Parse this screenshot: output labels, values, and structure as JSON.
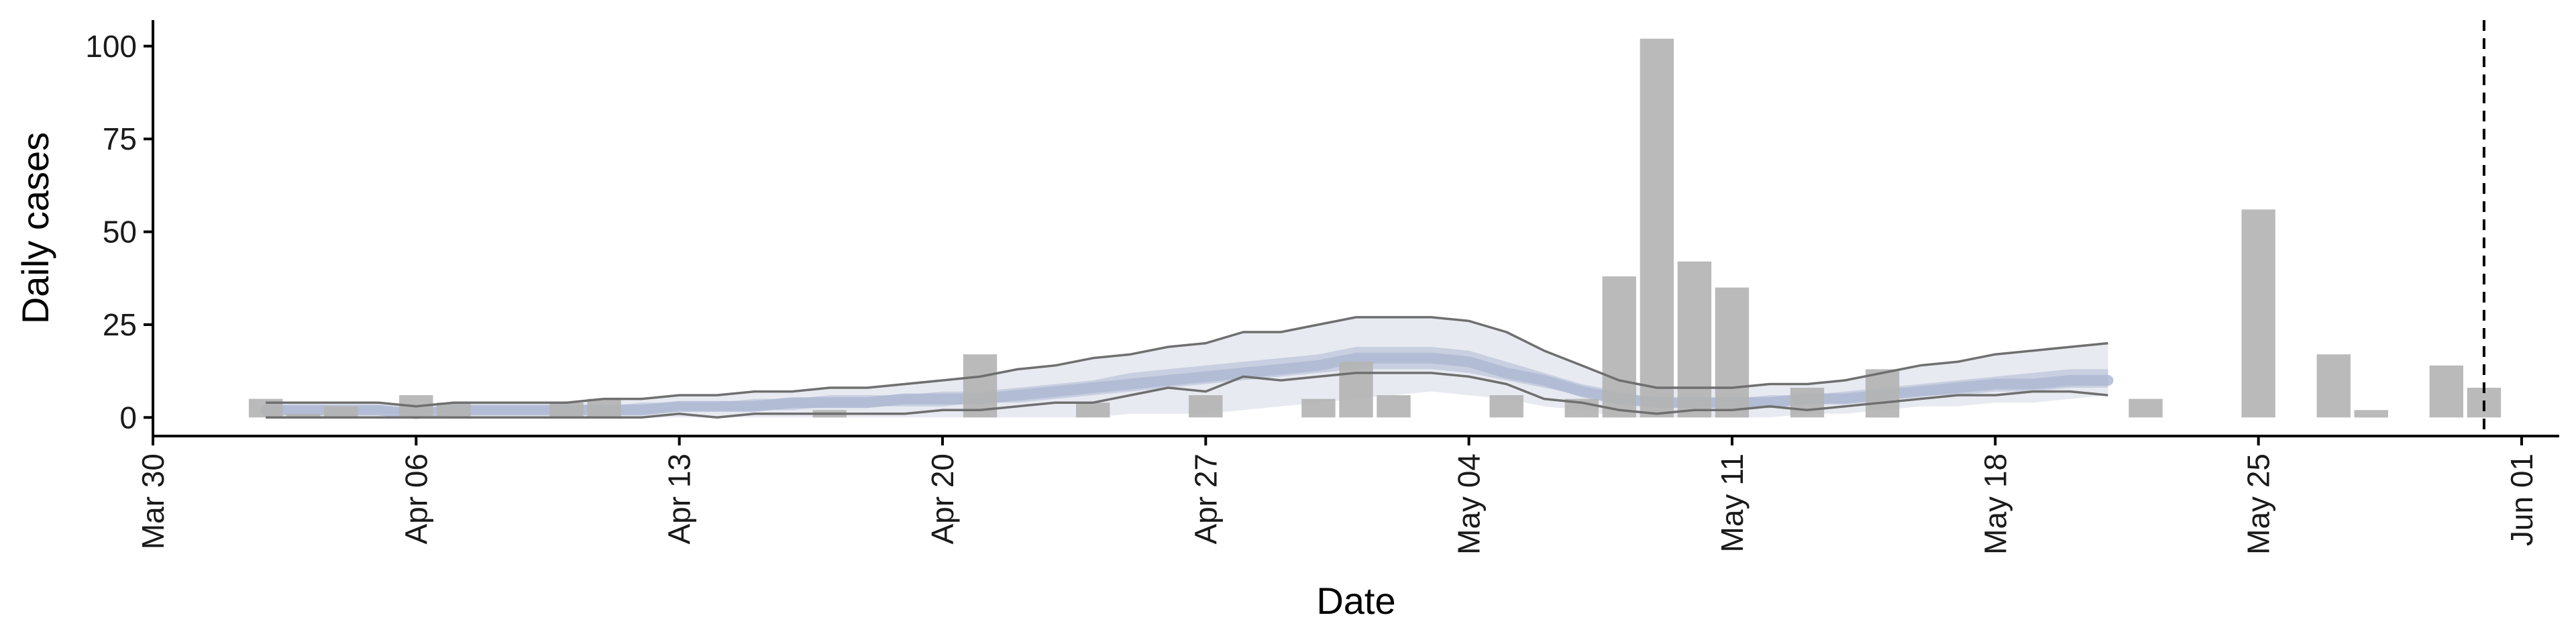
{
  "chart_data": {
    "type": "bar",
    "xlabel": "Date",
    "ylabel": "Daily cases",
    "xlim": [
      "2020-03-30",
      "2020-06-02"
    ],
    "ylim": [
      -5,
      107
    ],
    "x_ticks": [
      {
        "date": "2020-03-30",
        "label": "Mar 30"
      },
      {
        "date": "2020-04-06",
        "label": "Apr 06"
      },
      {
        "date": "2020-04-13",
        "label": "Apr 13"
      },
      {
        "date": "2020-04-20",
        "label": "Apr 20"
      },
      {
        "date": "2020-04-27",
        "label": "Apr 27"
      },
      {
        "date": "2020-05-04",
        "label": "May 04"
      },
      {
        "date": "2020-05-11",
        "label": "May 11"
      },
      {
        "date": "2020-05-18",
        "label": "May 18"
      },
      {
        "date": "2020-05-25",
        "label": "May 25"
      },
      {
        "date": "2020-06-01",
        "label": "Jun 01"
      }
    ],
    "y_ticks": [
      0,
      25,
      50,
      75,
      100
    ],
    "grid": false,
    "bars": [
      {
        "date": "2020-04-02",
        "value": 5
      },
      {
        "date": "2020-04-03",
        "value": 1
      },
      {
        "date": "2020-04-04",
        "value": 3
      },
      {
        "date": "2020-04-06",
        "value": 6
      },
      {
        "date": "2020-04-07",
        "value": 4
      },
      {
        "date": "2020-04-10",
        "value": 4
      },
      {
        "date": "2020-04-11",
        "value": 5
      },
      {
        "date": "2020-04-17",
        "value": 2
      },
      {
        "date": "2020-04-21",
        "value": 17
      },
      {
        "date": "2020-04-24",
        "value": 4
      },
      {
        "date": "2020-04-27",
        "value": 6
      },
      {
        "date": "2020-04-30",
        "value": 5
      },
      {
        "date": "2020-05-01",
        "value": 15
      },
      {
        "date": "2020-05-02",
        "value": 6
      },
      {
        "date": "2020-05-05",
        "value": 6
      },
      {
        "date": "2020-05-07",
        "value": 5
      },
      {
        "date": "2020-05-08",
        "value": 38
      },
      {
        "date": "2020-05-09",
        "value": 102
      },
      {
        "date": "2020-05-10",
        "value": 42
      },
      {
        "date": "2020-05-11",
        "value": 35
      },
      {
        "date": "2020-05-13",
        "value": 8
      },
      {
        "date": "2020-05-15",
        "value": 13
      },
      {
        "date": "2020-05-22",
        "value": 5
      },
      {
        "date": "2020-05-25",
        "value": 56
      },
      {
        "date": "2020-05-27",
        "value": 17
      },
      {
        "date": "2020-05-28",
        "value": 2
      },
      {
        "date": "2020-05-30",
        "value": 14
      },
      {
        "date": "2020-05-31",
        "value": 8
      }
    ],
    "band_dates": [
      "2020-04-02",
      "2020-04-03",
      "2020-04-04",
      "2020-04-05",
      "2020-04-06",
      "2020-04-07",
      "2020-04-08",
      "2020-04-09",
      "2020-04-10",
      "2020-04-11",
      "2020-04-12",
      "2020-04-13",
      "2020-04-14",
      "2020-04-15",
      "2020-04-16",
      "2020-04-17",
      "2020-04-18",
      "2020-04-19",
      "2020-04-20",
      "2020-04-21",
      "2020-04-22",
      "2020-04-23",
      "2020-04-24",
      "2020-04-25",
      "2020-04-26",
      "2020-04-27",
      "2020-04-28",
      "2020-04-29",
      "2020-04-30",
      "2020-05-01",
      "2020-05-02",
      "2020-05-03",
      "2020-05-04",
      "2020-05-05",
      "2020-05-06",
      "2020-05-07",
      "2020-05-08",
      "2020-05-09",
      "2020-05-10",
      "2020-05-11",
      "2020-05-12",
      "2020-05-13",
      "2020-05-14",
      "2020-05-15",
      "2020-05-16",
      "2020-05-17",
      "2020-05-18",
      "2020-05-19",
      "2020-05-20",
      "2020-05-21"
    ],
    "band_outer_upper": [
      4,
      4,
      4,
      4,
      3,
      4,
      4,
      4,
      4,
      5,
      5,
      6,
      6,
      7,
      7,
      8,
      8,
      9,
      10,
      11,
      13,
      14,
      16,
      17,
      19,
      20,
      23,
      23,
      25,
      27,
      27,
      27,
      26,
      23,
      18,
      14,
      10,
      8,
      8,
      8,
      9,
      9,
      10,
      12,
      14,
      15,
      17,
      18,
      19,
      20
    ],
    "band_outer_lower": [
      0,
      0,
      0,
      0,
      0,
      0,
      0,
      0,
      0,
      0,
      0,
      0,
      0,
      0,
      0,
      0,
      0,
      0,
      0,
      0,
      0,
      0,
      0,
      1,
      1,
      1,
      2,
      3,
      4,
      5,
      6,
      7,
      6,
      5,
      3,
      2,
      0,
      0,
      0,
      0,
      0,
      1,
      1,
      2,
      3,
      3,
      4,
      4,
      5,
      6
    ],
    "band_inner_upper": [
      3,
      3,
      3,
      3,
      2,
      3,
      3,
      3,
      3,
      3,
      4,
      4,
      4,
      5,
      5,
      6,
      6,
      6,
      7,
      7,
      8,
      9,
      10,
      12,
      13,
      14,
      15,
      16,
      17,
      19,
      19,
      19,
      18,
      15,
      12,
      9,
      7,
      5,
      5,
      5,
      6,
      6,
      7,
      8,
      9,
      10,
      11,
      12,
      13,
      13
    ],
    "band_inner_lower": [
      1,
      1,
      1,
      1,
      1,
      1,
      1,
      1,
      1,
      1,
      1,
      2,
      2,
      2,
      2,
      3,
      3,
      3,
      3,
      4,
      4,
      5,
      6,
      7,
      8,
      9,
      10,
      11,
      12,
      13,
      13,
      13,
      12,
      10,
      8,
      6,
      4,
      3,
      3,
      3,
      3,
      4,
      4,
      5,
      6,
      6,
      7,
      7,
      8,
      8
    ],
    "band_median": [
      2,
      2,
      2,
      2,
      1,
      2,
      2,
      2,
      2,
      2,
      2,
      3,
      3,
      3,
      4,
      4,
      4,
      5,
      5,
      5,
      6,
      7,
      8,
      9,
      10,
      11,
      12,
      13,
      14,
      16,
      16,
      16,
      15,
      12,
      10,
      7,
      5,
      4,
      4,
      4,
      4,
      5,
      5,
      6,
      7,
      8,
      9,
      9,
      10,
      10
    ],
    "line_upper": [
      4,
      4,
      4,
      4,
      3,
      4,
      4,
      4,
      4,
      5,
      5,
      6,
      6,
      7,
      7,
      8,
      8,
      9,
      10,
      11,
      13,
      14,
      16,
      17,
      19,
      20,
      23,
      23,
      25,
      27,
      27,
      27,
      26,
      23,
      18,
      14,
      10,
      8,
      8,
      8,
      9,
      9,
      10,
      12,
      14,
      15,
      17,
      18,
      19,
      20
    ],
    "line_lower": [
      0,
      0,
      0,
      0,
      0,
      0,
      0,
      0,
      0,
      0,
      0,
      1,
      0,
      1,
      1,
      1,
      1,
      1,
      2,
      2,
      3,
      4,
      4,
      6,
      8,
      7,
      11,
      10,
      11,
      12,
      12,
      12,
      11,
      9,
      5,
      4,
      2,
      1,
      2,
      2,
      3,
      2,
      3,
      4,
      5,
      6,
      6,
      7,
      7,
      6
    ],
    "vline_date": "2020-05-31"
  }
}
